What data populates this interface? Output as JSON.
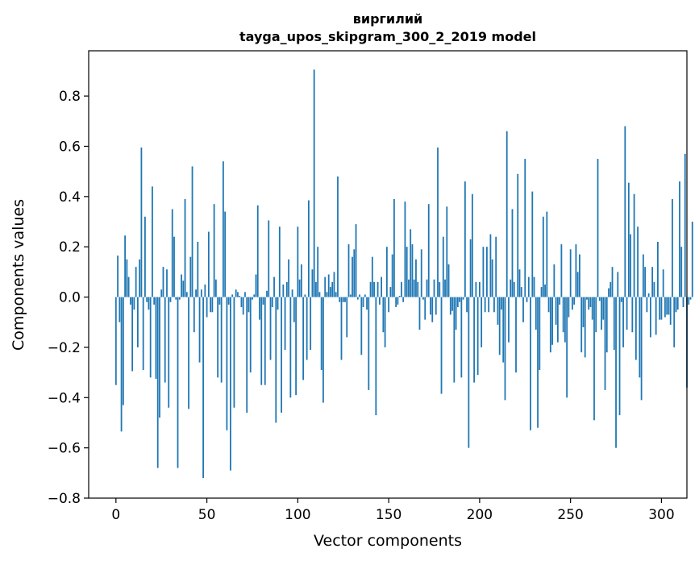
{
  "chart_data": {
    "type": "bar",
    "title": "виргилий",
    "subtitle": "tayga_upos_skipgram_300_2_2019 model",
    "xlabel": "Vector components",
    "ylabel": "Components values",
    "xlim": [
      -15,
      314
    ],
    "ylim": [
      -0.8,
      0.98
    ],
    "x_ticks": [
      0,
      50,
      100,
      150,
      200,
      250,
      300
    ],
    "y_ticks": [
      -0.8,
      -0.6,
      -0.4,
      -0.2,
      0.0,
      0.2,
      0.4,
      0.6,
      0.8
    ],
    "x_tick_labels": [
      "0",
      "50",
      "100",
      "150",
      "200",
      "250",
      "300"
    ],
    "y_tick_labels": [
      "−0.8",
      "−0.6",
      "−0.4",
      "−0.2",
      "0.0",
      "0.2",
      "0.4",
      "0.6",
      "0.8"
    ],
    "bar_color": "#1f77b4",
    "grid": false,
    "legend": "none",
    "x_start": 0,
    "values": [
      -0.35,
      0.165,
      -0.1,
      -0.535,
      -0.43,
      0.245,
      0.15,
      0.08,
      -0.03,
      -0.295,
      -0.05,
      0.12,
      -0.2,
      0.15,
      0.595,
      -0.29,
      0.32,
      -0.02,
      -0.05,
      -0.32,
      0.44,
      -0.03,
      -0.325,
      -0.68,
      -0.48,
      0.03,
      0.12,
      -0.34,
      0.11,
      -0.44,
      -0.02,
      0.35,
      0.24,
      -0.01,
      -0.68,
      -0.01,
      0.09,
      0.065,
      0.39,
      0.02,
      -0.445,
      0.16,
      0.52,
      -0.14,
      0.03,
      0.22,
      -0.26,
      0.03,
      -0.72,
      0.05,
      -0.08,
      0.26,
      -0.06,
      -0.06,
      0.37,
      0.07,
      -0.32,
      -0.03,
      -0.34,
      0.54,
      0.34,
      -0.53,
      -0.03,
      -0.69,
      0.01,
      -0.44,
      0.03,
      0.02,
      0.005,
      -0.04,
      -0.07,
      0.02,
      -0.46,
      -0.06,
      -0.3,
      -0.01,
      0.01,
      0.09,
      0.365,
      -0.09,
      -0.35,
      -0.03,
      -0.35,
      0.025,
      0.305,
      -0.25,
      -0.04,
      0.08,
      -0.5,
      -0.05,
      0.28,
      -0.46,
      0.05,
      -0.21,
      0.06,
      0.15,
      -0.4,
      0.03,
      -0.1,
      -0.39,
      0.28,
      0.07,
      0.13,
      -0.33,
      0.01,
      -0.25,
      0.385,
      -0.21,
      0.11,
      0.905,
      0.06,
      0.2,
      0.02,
      -0.29,
      -0.42,
      0.08,
      0.02,
      0.09,
      0.04,
      0.06,
      0.1,
      0.02,
      0.48,
      -0.02,
      -0.25,
      -0.02,
      -0.02,
      -0.16,
      0.21,
      0.01,
      0.16,
      0.19,
      0.29,
      -0.01,
      0.01,
      -0.23,
      -0.04,
      0.01,
      -0.05,
      -0.37,
      0.06,
      0.16,
      0.06,
      -0.47,
      0.06,
      -0.03,
      0.08,
      -0.14,
      -0.2,
      0.2,
      -0.06,
      0.04,
      0.17,
      0.39,
      -0.04,
      -0.03,
      0.005,
      0.06,
      -0.02,
      0.38,
      0.2,
      0.07,
      0.27,
      0.21,
      0.07,
      0.15,
      0.06,
      -0.13,
      0.19,
      -0.01,
      -0.09,
      0.07,
      0.37,
      -0.07,
      -0.1,
      0.07,
      -0.07,
      0.595,
      0.06,
      -0.385,
      0.24,
      0.07,
      0.36,
      0.13,
      -0.07,
      -0.055,
      -0.34,
      -0.13,
      -0.04,
      -0.02,
      -0.32,
      -0.01,
      0.46,
      -0.06,
      -0.6,
      0.23,
      0.41,
      -0.34,
      0.06,
      -0.31,
      0.06,
      -0.2,
      0.2,
      -0.06,
      0.2,
      -0.06,
      0.25,
      0.15,
      -0.06,
      0.24,
      -0.11,
      -0.23,
      -0.05,
      -0.26,
      -0.41,
      0.66,
      -0.18,
      0.07,
      0.35,
      0.06,
      -0.3,
      0.49,
      0.11,
      0.04,
      -0.1,
      0.55,
      -0.02,
      0.08,
      -0.53,
      0.42,
      0.08,
      -0.13,
      -0.52,
      -0.29,
      0.04,
      0.32,
      0.05,
      0.34,
      -0.06,
      -0.22,
      -0.19,
      0.13,
      -0.11,
      -0.18,
      -0.03,
      0.21,
      -0.14,
      -0.18,
      -0.4,
      -0.08,
      0.19,
      -0.05,
      -0.03,
      0.21,
      0.1,
      0.17,
      -0.22,
      -0.12,
      -0.24,
      -0.01,
      -0.05,
      -0.04,
      -0.09,
      -0.49,
      -0.14,
      0.55,
      -0.015,
      -0.13,
      -0.09,
      -0.37,
      -0.22,
      0.035,
      0.06,
      0.12,
      -0.21,
      -0.6,
      0.1,
      -0.47,
      -0.02,
      -0.2,
      0.68,
      -0.13,
      0.455,
      0.25,
      -0.14,
      0.41,
      -0.25,
      0.28,
      -0.32,
      -0.41,
      0.17,
      0.12,
      -0.06,
      0.015,
      -0.16,
      0.12,
      0.06,
      -0.15,
      0.22,
      -0.09,
      -0.09,
      0.11,
      -0.08,
      -0.07,
      -0.07,
      -0.11,
      0.39,
      -0.2,
      -0.06,
      -0.05,
      0.46,
      0.2,
      -0.04,
      0.57,
      -0.36,
      -0.03,
      -0.01,
      0.3
    ]
  }
}
